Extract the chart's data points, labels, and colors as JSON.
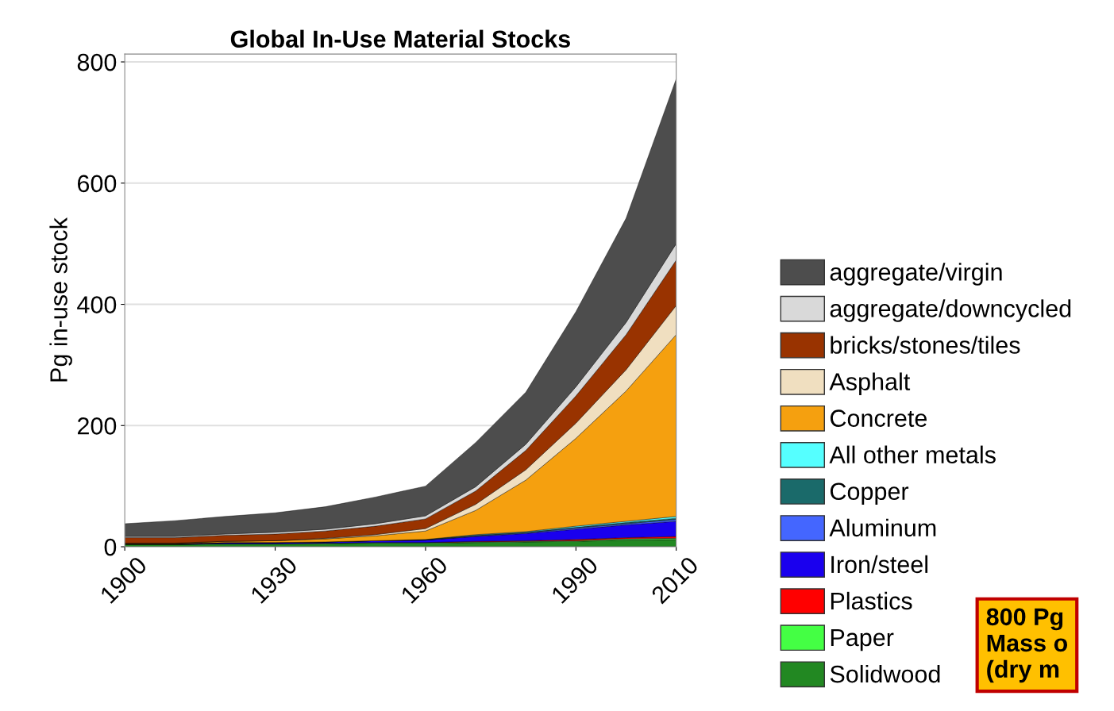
{
  "chart_data": {
    "type": "area",
    "stacked": true,
    "title": "Global In-Use Material Stocks",
    "ylabel": "Pg in-use stock",
    "x": [
      1900,
      1910,
      1920,
      1930,
      1940,
      1950,
      1960,
      1970,
      1980,
      1990,
      2000,
      2010
    ],
    "series": [
      {
        "name": "Solidwood",
        "color": "#228822",
        "values": [
          4,
          4,
          5,
          5,
          5,
          6,
          6,
          7,
          8,
          9,
          11,
          12
        ]
      },
      {
        "name": "Paper",
        "color": "#44ff44",
        "values": [
          0,
          0,
          0,
          0,
          1,
          1,
          1,
          1,
          1,
          1,
          2,
          2
        ]
      },
      {
        "name": "Plastics",
        "color": "#ff0000",
        "values": [
          0,
          0,
          0,
          0,
          0,
          0,
          0,
          1,
          1,
          2,
          2,
          3
        ]
      },
      {
        "name": "Iron/steel",
        "color": "#1a00ee",
        "values": [
          1,
          1,
          2,
          2,
          2,
          3,
          4,
          8,
          12,
          17,
          21,
          25
        ]
      },
      {
        "name": "Aluminum",
        "color": "#4466ff",
        "values": [
          0,
          0,
          0,
          0,
          0,
          0,
          0,
          1,
          1,
          2,
          2,
          3
        ]
      },
      {
        "name": "Copper",
        "color": "#1a6a6a",
        "values": [
          0,
          0,
          0,
          0,
          0,
          0,
          1,
          1,
          1,
          1,
          2,
          2
        ]
      },
      {
        "name": "All other metals",
        "color": "#55ffff",
        "values": [
          0,
          0,
          0,
          0,
          0,
          0,
          0,
          1,
          1,
          2,
          2,
          3
        ]
      },
      {
        "name": "Concrete",
        "color": "#f5a00f",
        "values": [
          1,
          1,
          2,
          3,
          5,
          8,
          14,
          40,
          85,
          145,
          215,
          300
        ]
      },
      {
        "name": "Asphalt",
        "color": "#f0dfc0",
        "values": [
          0,
          0,
          0,
          0,
          1,
          2,
          4,
          10,
          17,
          25,
          35,
          48
        ]
      },
      {
        "name": "bricks/stones/tiles",
        "color": "#993300",
        "values": [
          9,
          9,
          10,
          11,
          12,
          14,
          16,
          22,
          32,
          45,
          58,
          75
        ]
      },
      {
        "name": "aggregate/downcycled",
        "color": "#d9d9d9",
        "values": [
          2,
          2,
          2,
          3,
          3,
          4,
          5,
          7,
          10,
          15,
          20,
          27
        ]
      },
      {
        "name": "aggregate/virgin",
        "color": "#4d4d4d",
        "values": [
          21,
          26,
          29,
          32,
          37,
          44,
          49,
          73,
          86,
          124,
          172,
          272
        ]
      }
    ],
    "xlim": [
      1900,
      2010
    ],
    "xticks": [
      1900,
      1930,
      1960,
      1990,
      2010
    ],
    "ylim": [
      0,
      813
    ],
    "yticks": [
      0,
      200,
      400,
      600,
      800
    ],
    "grid": "y",
    "legend": "right",
    "annotations": [
      "800 Pg\nMass o\n(dry m"
    ]
  }
}
